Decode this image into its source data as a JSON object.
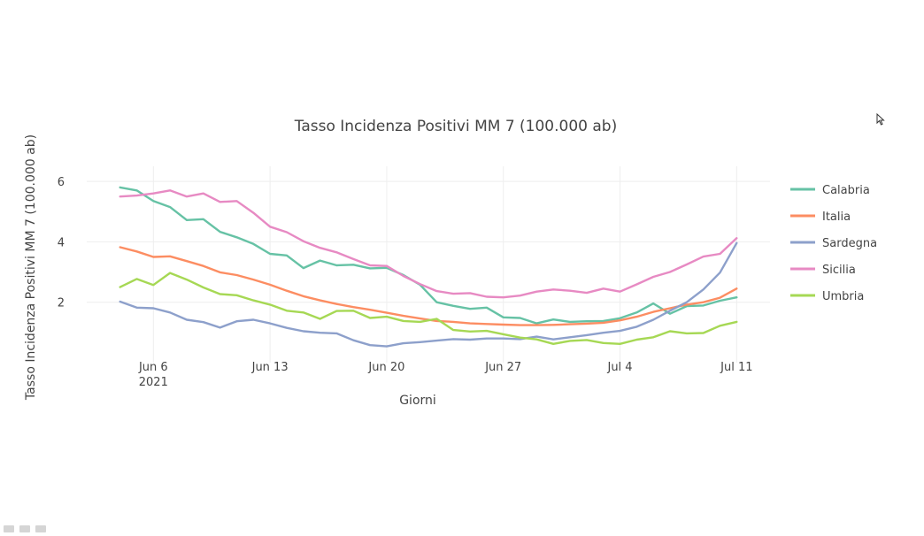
{
  "chart_data": {
    "type": "line",
    "title": "Tasso Incidenza Positivi MM 7 (100.000 ab)",
    "xlabel": "Giorni",
    "ylabel": "Tasso Incidenza Positivi MM 7 (100.000 ab)",
    "x_start": "2021-06-04",
    "x_end": "2021-07-11",
    "xlim": [
      "2021-06-02",
      "2021-07-13"
    ],
    "ylim": [
      0,
      6.5
    ],
    "y_ticks": [
      2,
      4,
      6
    ],
    "x_ticks": [
      {
        "date": "2021-06-06",
        "label": "Jun 6",
        "sublabel": "2021"
      },
      {
        "date": "2021-06-13",
        "label": "Jun 13"
      },
      {
        "date": "2021-06-20",
        "label": "Jun 20"
      },
      {
        "date": "2021-06-27",
        "label": "Jun 27"
      },
      {
        "date": "2021-07-04",
        "label": "Jul 4"
      },
      {
        "date": "2021-07-11",
        "label": "Jul 11"
      }
    ],
    "grid": true,
    "legend_position": "right",
    "series": [
      {
        "name": "Calabria",
        "color": "#66c2a5",
        "values": [
          5.8,
          5.7,
          5.35,
          5.15,
          4.72,
          4.75,
          4.33,
          4.15,
          3.93,
          3.6,
          3.55,
          3.13,
          3.38,
          3.22,
          3.24,
          3.12,
          3.14,
          2.9,
          2.58,
          2.0,
          1.88,
          1.78,
          1.82,
          1.5,
          1.48,
          1.3,
          1.43,
          1.35,
          1.37,
          1.38,
          1.47,
          1.66,
          1.96,
          1.62,
          1.87,
          1.89,
          2.05,
          2.16
        ]
      },
      {
        "name": "Italia",
        "color": "#fc8d62",
        "values": [
          3.82,
          3.68,
          3.5,
          3.52,
          3.36,
          3.2,
          2.99,
          2.9,
          2.75,
          2.58,
          2.38,
          2.2,
          2.06,
          1.94,
          1.84,
          1.75,
          1.65,
          1.55,
          1.46,
          1.38,
          1.35,
          1.3,
          1.28,
          1.26,
          1.24,
          1.24,
          1.25,
          1.27,
          1.29,
          1.32,
          1.4,
          1.52,
          1.68,
          1.8,
          1.92,
          2.0,
          2.15,
          2.45
        ]
      },
      {
        "name": "Sardegna",
        "color": "#8da0cb",
        "values": [
          2.02,
          1.82,
          1.8,
          1.66,
          1.42,
          1.34,
          1.16,
          1.37,
          1.42,
          1.3,
          1.15,
          1.04,
          0.99,
          0.97,
          0.74,
          0.58,
          0.54,
          0.64,
          0.68,
          0.73,
          0.78,
          0.76,
          0.8,
          0.8,
          0.78,
          0.86,
          0.77,
          0.84,
          0.91,
          0.99,
          1.05,
          1.19,
          1.42,
          1.72,
          2.0,
          2.42,
          2.98,
          3.96
        ]
      },
      {
        "name": "Sicilia",
        "color": "#e78ac3",
        "values": [
          5.5,
          5.53,
          5.6,
          5.7,
          5.5,
          5.6,
          5.32,
          5.35,
          4.96,
          4.5,
          4.32,
          4.02,
          3.8,
          3.65,
          3.43,
          3.22,
          3.2,
          2.87,
          2.6,
          2.37,
          2.28,
          2.3,
          2.18,
          2.16,
          2.22,
          2.35,
          2.42,
          2.38,
          2.31,
          2.45,
          2.35,
          2.59,
          2.84,
          3.0,
          3.25,
          3.51,
          3.6,
          4.12
        ]
      },
      {
        "name": "Umbria",
        "color": "#a6d854",
        "values": [
          2.5,
          2.77,
          2.57,
          2.97,
          2.75,
          2.49,
          2.27,
          2.23,
          2.06,
          1.92,
          1.72,
          1.66,
          1.45,
          1.71,
          1.72,
          1.48,
          1.52,
          1.38,
          1.35,
          1.45,
          1.08,
          1.03,
          1.05,
          0.94,
          0.83,
          0.77,
          0.62,
          0.72,
          0.75,
          0.65,
          0.62,
          0.76,
          0.84,
          1.04,
          0.97,
          0.98,
          1.22,
          1.35
        ]
      }
    ]
  }
}
